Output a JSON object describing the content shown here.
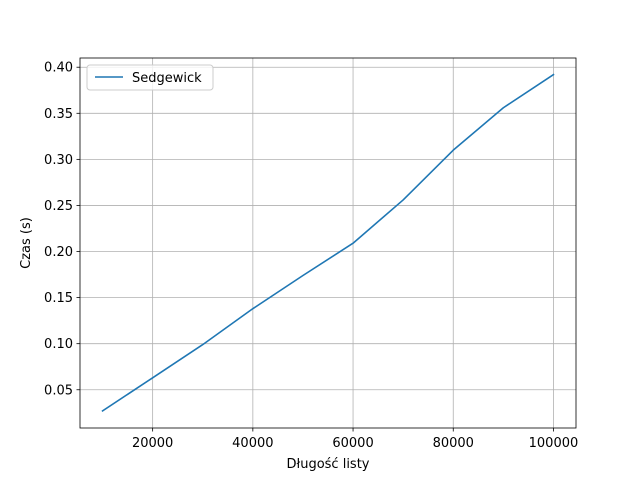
{
  "chart_data": {
    "type": "line",
    "title": "",
    "xlabel": "Długość listy",
    "ylabel": "Czas (s)",
    "xlim": [
      5500,
      104500
    ],
    "ylim": [
      0.0085,
      0.41
    ],
    "x_ticks": [
      20000,
      40000,
      60000,
      80000,
      100000
    ],
    "x_tick_labels": [
      "20000",
      "40000",
      "60000",
      "80000",
      "100000"
    ],
    "y_ticks": [
      0.05,
      0.1,
      0.15,
      0.2,
      0.25,
      0.3,
      0.35,
      0.4
    ],
    "y_tick_labels": [
      "0.05",
      "0.10",
      "0.15",
      "0.20",
      "0.25",
      "0.30",
      "0.35",
      "0.40"
    ],
    "grid": true,
    "legend_position": "top-left",
    "series": [
      {
        "name": "Sedgewick",
        "color": "#1f77b4",
        "x": [
          10000,
          20000,
          30000,
          40000,
          50000,
          60000,
          70000,
          80000,
          90000,
          100000
        ],
        "y": [
          0.027,
          0.063,
          0.099,
          0.138,
          0.174,
          0.209,
          0.256,
          0.31,
          0.356,
          0.392
        ]
      }
    ]
  }
}
